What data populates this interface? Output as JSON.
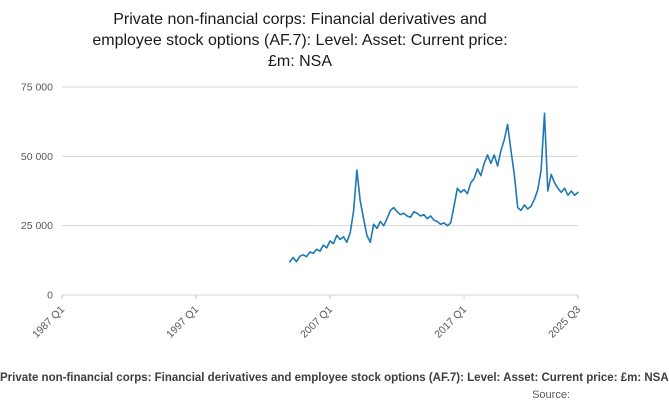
{
  "title_lines": [
    "Private non-financial corps: Financial derivatives and",
    "employee stock options (AF.7): Level: Asset: Current price:",
    "£m: NSA"
  ],
  "footer": {
    "caption": "Private non-financial corps: Financial derivatives and employee stock options (AF.7): Level: Asset: Current price: £m: NSA",
    "source": "Source:"
  },
  "chart_data": {
    "type": "line",
    "title": "Private non-financial corps: Financial derivatives and employee stock options (AF.7): Level: Asset: Current price: £m: NSA",
    "xlabel": "",
    "ylabel": "",
    "ylim": [
      0,
      75000
    ],
    "y_ticks": [
      0,
      25000,
      50000,
      75000
    ],
    "y_tick_labels": [
      "0",
      "25 000",
      "50 000",
      "75 000"
    ],
    "x_axis": {
      "min": 1987.0,
      "max": 2025.5,
      "unit": "year (quarterly)"
    },
    "x_ticks": [
      {
        "label": "1987 Q1",
        "value": 1987.0
      },
      {
        "label": "1997 Q1",
        "value": 1997.0
      },
      {
        "label": "2007 Q1",
        "value": 2007.0
      },
      {
        "label": "2017 Q1",
        "value": 2017.0
      },
      {
        "label": "2025 Q3",
        "value": 2025.5
      }
    ],
    "grid": true,
    "legend": false,
    "line_color": "#1e78b4",
    "series": [
      {
        "name": "Private non-financial corps: Financial derivatives and employee stock options (AF.7): Level: Asset: Current price: £m: NSA",
        "frequency": "quarterly",
        "start": "2004 Q1",
        "end": "2025 Q3",
        "x": [
          2004.0,
          2004.25,
          2004.5,
          2004.75,
          2005.0,
          2005.25,
          2005.5,
          2005.75,
          2006.0,
          2006.25,
          2006.5,
          2006.75,
          2007.0,
          2007.25,
          2007.5,
          2007.75,
          2008.0,
          2008.25,
          2008.5,
          2008.75,
          2009.0,
          2009.25,
          2009.5,
          2009.75,
          2010.0,
          2010.25,
          2010.5,
          2010.75,
          2011.0,
          2011.25,
          2011.5,
          2011.75,
          2012.0,
          2012.25,
          2012.5,
          2012.75,
          2013.0,
          2013.25,
          2013.5,
          2013.75,
          2014.0,
          2014.25,
          2014.5,
          2014.75,
          2015.0,
          2015.25,
          2015.5,
          2015.75,
          2016.0,
          2016.25,
          2016.5,
          2016.75,
          2017.0,
          2017.25,
          2017.5,
          2017.75,
          2018.0,
          2018.25,
          2018.5,
          2018.75,
          2019.0,
          2019.25,
          2019.5,
          2019.75,
          2020.0,
          2020.25,
          2020.5,
          2020.75,
          2021.0,
          2021.25,
          2021.5,
          2021.75,
          2022.0,
          2022.25,
          2022.5,
          2022.75,
          2023.0,
          2023.25,
          2023.5,
          2023.75,
          2024.0,
          2024.25,
          2024.5,
          2024.75,
          2025.0,
          2025.25,
          2025.5
        ],
        "values": [
          12000,
          13500,
          12000,
          14000,
          14500,
          13800,
          15500,
          15000,
          16500,
          15800,
          18000,
          17000,
          19500,
          18500,
          21500,
          20000,
          21000,
          19000,
          22500,
          30000,
          45000,
          34000,
          27500,
          21500,
          19000,
          25500,
          24000,
          26500,
          25000,
          27500,
          30500,
          31500,
          30000,
          29000,
          29500,
          28500,
          28000,
          30000,
          29500,
          28500,
          29000,
          27500,
          28500,
          27000,
          26500,
          25500,
          26000,
          25000,
          26000,
          32000,
          38500,
          37000,
          38000,
          36500,
          40500,
          42000,
          45500,
          43000,
          47500,
          50500,
          47500,
          50500,
          46500,
          52000,
          56000,
          61500,
          52000,
          43500,
          31500,
          30500,
          32500,
          31000,
          32000,
          34500,
          38000,
          45000,
          65500,
          37500,
          43500,
          40500,
          38500,
          37000,
          38500,
          36000,
          37500,
          36000,
          37000
        ]
      }
    ]
  }
}
